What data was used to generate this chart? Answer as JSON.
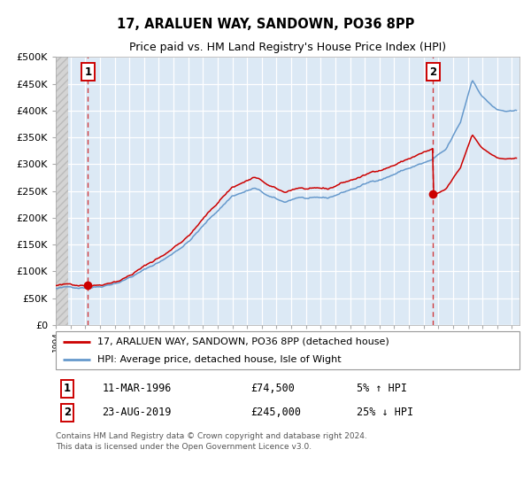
{
  "title": "17, ARALUEN WAY, SANDOWN, PO36 8PP",
  "subtitle": "Price paid vs. HM Land Registry's House Price Index (HPI)",
  "legend_line1": "17, ARALUEN WAY, SANDOWN, PO36 8PP (detached house)",
  "legend_line2": "HPI: Average price, detached house, Isle of Wight",
  "annotation1": {
    "num": "1",
    "date": "11-MAR-1996",
    "price": "£74,500",
    "hpi": "5% ↑ HPI"
  },
  "annotation2": {
    "num": "2",
    "date": "23-AUG-2019",
    "price": "£245,000",
    "hpi": "25% ↓ HPI"
  },
  "footer": "Contains HM Land Registry data © Crown copyright and database right 2024.\nThis data is licensed under the Open Government Licence v3.0.",
  "sale1_year": 1996.19,
  "sale1_price": 74500,
  "sale2_year": 2019.64,
  "sale2_price": 245000,
  "hpi_color": "#6699cc",
  "property_color": "#cc0000",
  "plot_bg": "#dce9f5",
  "ylim": [
    0,
    500000
  ],
  "xlim_start": 1994.0,
  "xlim_end": 2025.5
}
